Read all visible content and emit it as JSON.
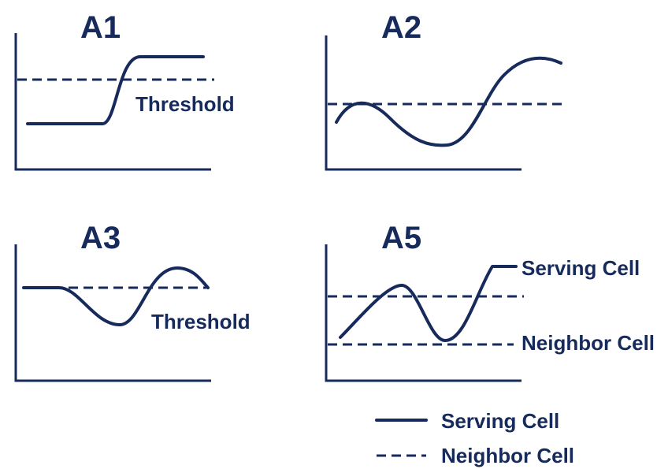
{
  "panels": {
    "a1": {
      "title": "A1",
      "label": "Threshold"
    },
    "a2": {
      "title": "A2"
    },
    "a3": {
      "title": "A3",
      "label": "Threshold"
    },
    "a5": {
      "title": "A5",
      "upper_label": "Serving Cell",
      "lower_label": "Neighbor Cell"
    }
  },
  "legend": {
    "solid_label": "Serving Cell",
    "dashed_label": "Neighbor Cell"
  },
  "colors": {
    "ink": "#172a5c",
    "background": "#ffffff"
  }
}
